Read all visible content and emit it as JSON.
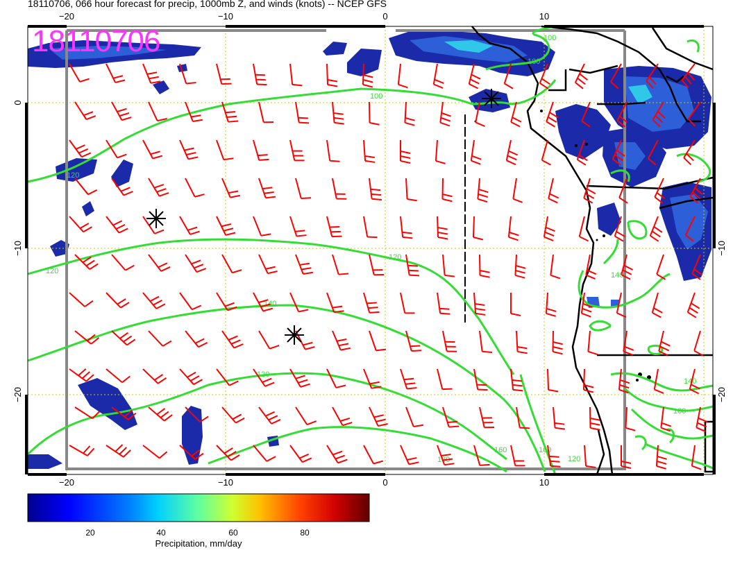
{
  "title": "18110706, 066 hour forecast for precip, 1000mb Z, and winds (knots) -- NCEP GFS",
  "stamp": "18110706",
  "axes": {
    "lon_ticks": [
      "−20",
      "−10",
      "0",
      "10"
    ],
    "lat_ticks_left": [
      "0",
      "−10",
      "−20"
    ],
    "lat_ticks_right": [
      "−10",
      "−20"
    ]
  },
  "contour_labels": [
    "100",
    "100",
    "100",
    "120",
    "120",
    "120",
    "120",
    "140",
    "140",
    "160",
    "160",
    "180",
    "120",
    "160",
    "140"
  ],
  "colorbar": {
    "title": "Precipitation, mm/day",
    "ticks": [
      "20",
      "40",
      "60",
      "80"
    ],
    "colors": [
      "#00008f",
      "#0040ff",
      "#00c0ff",
      "#40ffc0",
      "#c0ff40",
      "#ffc000",
      "#ff4000",
      "#c00000",
      "#800000"
    ]
  },
  "colors": {
    "precip_dark": "#1a2aa8",
    "precip_mid": "#2d5fd8",
    "precip_light": "#30c8e8",
    "contour": "#33dd33",
    "barb": "#ff0000",
    "grid": "#cccc00",
    "stamp": "#ff33ff"
  },
  "icons": [
    "low-pressure-star-icon",
    "wind-barb-icon"
  ]
}
